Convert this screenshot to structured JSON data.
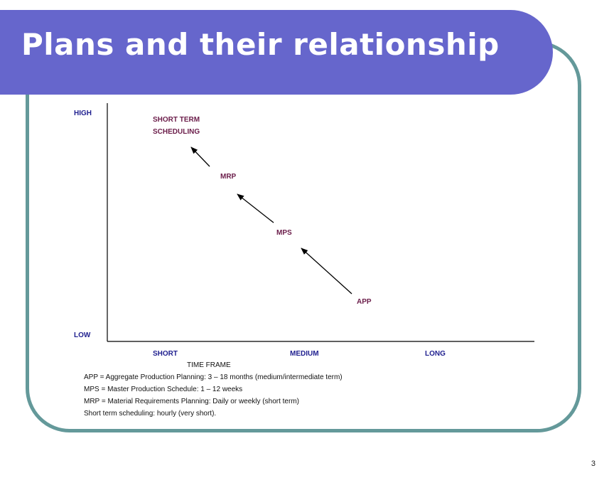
{
  "slide": {
    "title": "Plans and their relationship",
    "page_number": "3"
  },
  "diagram": {
    "y_axis": {
      "high": "HIGH",
      "low": "LOW"
    },
    "x_axis": {
      "short": "SHORT",
      "medium": "MEDIUM",
      "long": "LONG",
      "caption": "TIME FRAME"
    },
    "plans": {
      "short_term_line1": "SHORT TERM",
      "short_term_line2": "SCHEDULING",
      "mrp": "MRP",
      "mps": "MPS",
      "app": "APP"
    }
  },
  "notes": [
    "APP = Aggregate Production Planning:  3 – 18 months (medium/intermediate  term)",
    "MPS = Master Production Schedule:  1 – 12 weeks",
    "MRP = Material Requirements Planning: Daily or weekly (short term)",
    "Short term scheduling: hourly (very short)."
  ],
  "colors": {
    "title_bar": "#6666cc",
    "frame": "#64999a",
    "axis_label": "#1f1f8f",
    "plan_label": "#6b1d4a"
  }
}
